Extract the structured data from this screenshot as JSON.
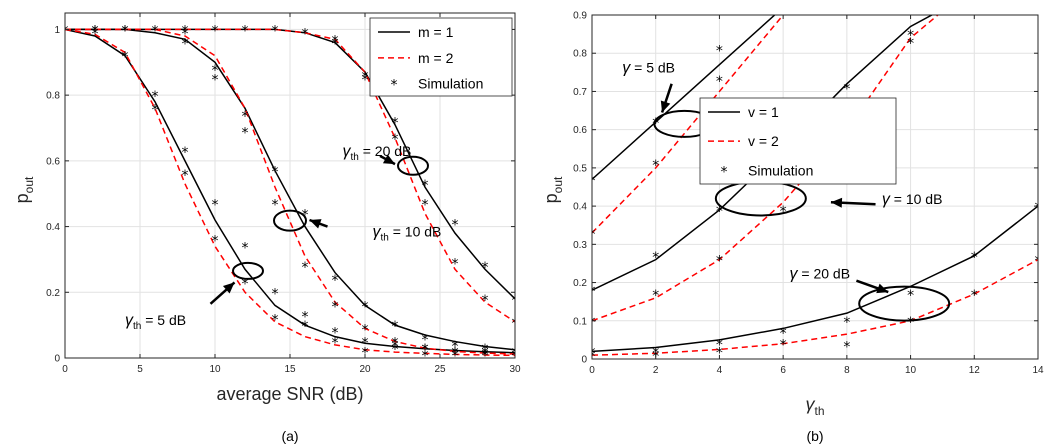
{
  "chart_data": [
    {
      "type": "line",
      "caption": "(a)",
      "xlabel": "average SNR (dB)",
      "ylabel": "p",
      "ylabel_sub": "out",
      "xlim": [
        0,
        30
      ],
      "ylim": [
        0,
        1.05
      ],
      "xticks": [
        "0",
        "5",
        "10",
        "15",
        "20",
        "25",
        "30"
      ],
      "yticks": [
        "0",
        "0.2",
        "0.4",
        "0.6",
        "0.8",
        "1"
      ],
      "grid": true,
      "legend": {
        "position": "top-right",
        "entries": [
          {
            "label": "m = 1",
            "style": "solid",
            "color": "#000000"
          },
          {
            "label": "m = 2",
            "style": "dashed",
            "color": "#ff0000"
          },
          {
            "label": "Simulation",
            "style": "marker",
            "color": "#000000"
          }
        ]
      },
      "annotations": [
        {
          "sym": "γ",
          "sub": "th",
          "text": " = 20 dB",
          "x": 18.5,
          "y": 0.615
        },
        {
          "sym": "γ",
          "sub": "th",
          "text": " = 10 dB",
          "x": 20.5,
          "y": 0.37
        },
        {
          "sym": "γ",
          "sub": "th",
          "text": " = 5  dB",
          "x": 4,
          "y": 0.1
        }
      ],
      "ellipses": [
        {
          "cx": 23.2,
          "cy": 0.585
        },
        {
          "cx": 15.0,
          "cy": 0.418
        },
        {
          "cx": 12.2,
          "cy": 0.265
        }
      ],
      "arrows": [
        {
          "from": [
            21.0,
            0.615
          ],
          "to": [
            22.0,
            0.59
          ]
        },
        {
          "from": [
            17.5,
            0.4
          ],
          "to": [
            16.3,
            0.42
          ]
        },
        {
          "from": [
            9.7,
            0.165
          ],
          "to": [
            11.3,
            0.23
          ]
        }
      ],
      "series": [
        {
          "name": "m = 1",
          "style": "solid",
          "color": "#000000",
          "x": [
            0,
            2,
            4,
            6,
            8,
            10,
            12,
            14,
            16,
            18,
            20,
            22,
            24,
            26,
            28,
            30
          ],
          "curves": [
            [
              1,
              0.98,
              0.92,
              0.78,
              0.6,
              0.42,
              0.27,
              0.16,
              0.1,
              0.065,
              0.045,
              0.035,
              0.028,
              0.023,
              0.019,
              0.016
            ],
            [
              1,
              1,
              1,
              0.99,
              0.97,
              0.9,
              0.76,
              0.57,
              0.4,
              0.26,
              0.16,
              0.1,
              0.07,
              0.05,
              0.035,
              0.025
            ],
            [
              1,
              1,
              1,
              1,
              1,
              1,
              1,
              1,
              0.99,
              0.96,
              0.87,
              0.71,
              0.52,
              0.38,
              0.27,
              0.18
            ]
          ]
        },
        {
          "name": "m = 2",
          "style": "dashed",
          "color": "#ff0000",
          "x": [
            0,
            2,
            4,
            6,
            8,
            10,
            12,
            14,
            16,
            18,
            20,
            22,
            24,
            26,
            28,
            30
          ],
          "curves": [
            [
              1,
              0.985,
              0.93,
              0.76,
              0.53,
              0.34,
              0.2,
              0.11,
              0.065,
              0.04,
              0.025,
              0.018,
              0.014,
              0.011,
              0.009,
              0.008
            ],
            [
              1,
              1,
              1,
              1,
              0.98,
              0.92,
              0.76,
              0.52,
              0.31,
              0.17,
              0.09,
              0.05,
              0.03,
              0.02,
              0.015,
              0.012
            ],
            [
              1,
              1,
              1,
              1,
              1,
              1,
              1,
              1,
              0.99,
              0.97,
              0.87,
              0.67,
              0.44,
              0.27,
              0.17,
              0.11
            ]
          ]
        },
        {
          "name": "Simulation",
          "style": "marker",
          "color": "#000000",
          "points": [
            [
              0,
              1
            ],
            [
              2,
              0.99
            ],
            [
              4,
              0.92
            ],
            [
              6,
              0.8
            ],
            [
              6,
              0.76
            ],
            [
              8,
              0.63
            ],
            [
              8,
              0.56
            ],
            [
              10,
              0.47
            ],
            [
              10,
              0.36
            ],
            [
              12,
              0.34
            ],
            [
              12,
              0.23
            ],
            [
              14,
              0.2
            ],
            [
              14,
              0.12
            ],
            [
              16,
              0.13
            ],
            [
              16,
              0.1
            ],
            [
              18,
              0.08
            ],
            [
              18,
              0.05
            ],
            [
              20,
              0.05
            ],
            [
              20,
              0.02
            ],
            [
              22,
              0.04
            ],
            [
              22,
              0.03
            ],
            [
              24,
              0.03
            ],
            [
              24,
              0.01
            ],
            [
              26,
              0.02
            ],
            [
              26,
              0.01
            ],
            [
              28,
              0.02
            ],
            [
              28,
              0.01
            ],
            [
              30,
              0.01
            ],
            [
              2,
              1
            ],
            [
              4,
              1
            ],
            [
              6,
              1
            ],
            [
              8,
              0.99
            ],
            [
              8,
              0.96
            ],
            [
              10,
              0.88
            ],
            [
              10,
              0.85
            ],
            [
              12,
              0.69
            ],
            [
              12,
              0.74
            ],
            [
              14,
              0.57
            ],
            [
              14,
              0.47
            ],
            [
              16,
              0.44
            ],
            [
              16,
              0.28
            ],
            [
              18,
              0.24
            ],
            [
              18,
              0.16
            ],
            [
              20,
              0.16
            ],
            [
              20,
              0.09
            ],
            [
              22,
              0.1
            ],
            [
              22,
              0.05
            ],
            [
              24,
              0.06
            ],
            [
              24,
              0.03
            ],
            [
              26,
              0.04
            ],
            [
              26,
              0.02
            ],
            [
              28,
              0.03
            ],
            [
              28,
              0.015
            ],
            [
              30,
              0.02
            ],
            [
              30,
              0.01
            ],
            [
              2,
              1
            ],
            [
              4,
              1
            ],
            [
              8,
              1
            ],
            [
              10,
              1
            ],
            [
              12,
              1
            ],
            [
              14,
              1
            ],
            [
              16,
              0.99
            ],
            [
              18,
              0.97
            ],
            [
              18,
              0.96
            ],
            [
              20,
              0.86
            ],
            [
              20,
              0.85
            ],
            [
              22,
              0.72
            ],
            [
              22,
              0.67
            ],
            [
              24,
              0.53
            ],
            [
              24,
              0.47
            ],
            [
              26,
              0.41
            ],
            [
              26,
              0.29
            ],
            [
              28,
              0.28
            ],
            [
              28,
              0.18
            ],
            [
              30,
              0.18
            ],
            [
              30,
              0.11
            ]
          ]
        }
      ]
    },
    {
      "type": "line",
      "caption": "(b)",
      "xlabel": "γ",
      "xlabel_sub": "th",
      "ylabel": "p",
      "ylabel_sub": "out",
      "xlim": [
        0,
        14
      ],
      "ylim": [
        0,
        0.9
      ],
      "xticks": [
        "0",
        "2",
        "4",
        "6",
        "8",
        "10",
        "12",
        "14"
      ],
      "yticks": [
        "0",
        "0.1",
        "0.2",
        "0.3",
        "0.4",
        "0.5",
        "0.6",
        "0.7",
        "0.8",
        "0.9"
      ],
      "grid": true,
      "legend": {
        "position": "middle-right",
        "entries": [
          {
            "label": "v = 1",
            "style": "solid",
            "color": "#000000"
          },
          {
            "label": "v = 2",
            "style": "dashed",
            "color": "#ff0000"
          },
          {
            "label": "Simulation",
            "style": "marker",
            "color": "#000000"
          }
        ]
      },
      "annotations": [
        {
          "sym": "γ",
          "sub": "",
          "text": " = 5  dB",
          "x": 0.95,
          "y": 0.75
        },
        {
          "sym": "γ",
          "sub": "",
          "text": " = 10  dB",
          "x": 9.1,
          "y": 0.405
        },
        {
          "sym": "γ",
          "sub": "",
          "text": " = 20  dB",
          "x": 6.2,
          "y": 0.21
        }
      ],
      "ellipses": [
        {
          "cx": 2.9,
          "cy": 0.615
        },
        {
          "cx": 5.3,
          "cy": 0.42
        },
        {
          "cx": 9.8,
          "cy": 0.145
        }
      ],
      "arrows": [
        {
          "from": [
            2.5,
            0.72
          ],
          "to": [
            2.2,
            0.645
          ]
        },
        {
          "from": [
            8.9,
            0.405
          ],
          "to": [
            7.5,
            0.41
          ]
        },
        {
          "from": [
            8.3,
            0.205
          ],
          "to": [
            9.3,
            0.175
          ]
        }
      ],
      "series": [
        {
          "name": "v = 1",
          "style": "solid",
          "color": "#000000",
          "x": [
            0,
            2,
            4,
            6,
            8,
            10,
            12,
            14
          ],
          "curves": [
            [
              0.47,
              0.62,
              0.77,
              0.92,
              1.07
            ],
            [
              0.18,
              0.26,
              0.39,
              0.55,
              0.72,
              0.87,
              0.96,
              1.0
            ],
            [
              0.02,
              0.03,
              0.05,
              0.08,
              0.12,
              0.19,
              0.27,
              0.4
            ]
          ]
        },
        {
          "name": "v = 2",
          "style": "dashed",
          "color": "#ff0000",
          "x": [
            0,
            2,
            4,
            6,
            8,
            10,
            12,
            14
          ],
          "curves": [
            [
              0.33,
              0.5,
              0.7,
              0.9,
              1.07
            ],
            [
              0.1,
              0.16,
              0.26,
              0.41,
              0.6,
              0.84,
              0.98,
              1.0
            ],
            [
              0.01,
              0.015,
              0.025,
              0.04,
              0.065,
              0.1,
              0.17,
              0.26
            ]
          ]
        },
        {
          "name": "Simulation",
          "style": "marker",
          "color": "#000000",
          "points": [
            [
              0,
              0.47
            ],
            [
              0,
              0.33
            ],
            [
              2,
              0.62
            ],
            [
              2,
              0.51
            ],
            [
              4,
              0.81
            ],
            [
              4,
              0.73
            ],
            [
              0,
              0.18
            ],
            [
              0,
              0.1
            ],
            [
              2,
              0.27
            ],
            [
              2,
              0.17
            ],
            [
              4,
              0.39
            ],
            [
              4,
              0.26
            ],
            [
              6,
              0.57
            ],
            [
              6,
              0.39
            ],
            [
              8,
              0.71
            ],
            [
              8,
              0.61
            ],
            [
              10,
              0.85
            ],
            [
              10,
              0.83
            ],
            [
              0,
              0.02
            ],
            [
              0,
              0.01
            ],
            [
              2,
              0.02
            ],
            [
              2,
              0.01
            ],
            [
              4,
              0.04
            ],
            [
              4,
              0.02
            ],
            [
              6,
              0.07
            ],
            [
              6,
              0.04
            ],
            [
              8,
              0.1
            ],
            [
              8,
              0.035
            ],
            [
              10,
              0.17
            ],
            [
              10,
              0.1
            ],
            [
              12,
              0.27
            ],
            [
              12,
              0.17
            ],
            [
              14,
              0.4
            ],
            [
              14,
              0.26
            ]
          ]
        }
      ]
    }
  ]
}
